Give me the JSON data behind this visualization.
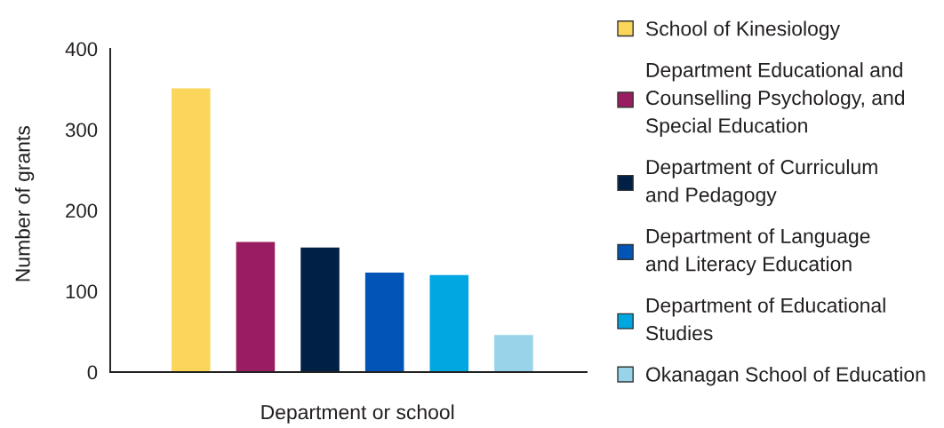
{
  "chart_data": {
    "type": "bar",
    "stacked": true,
    "xlabel": "Department or school",
    "ylabel": "Number of grants",
    "categories": [
      null,
      null,
      null,
      null,
      null,
      null
    ],
    "series": [
      {
        "name": "School of Kinesiology",
        "color": "#fcd65a",
        "values": [
          351,
          null,
          null,
          null,
          null,
          null
        ]
      },
      {
        "name": "Department Educational and\nCounselling Psychology, and\nSpecial Education",
        "color": "#9b1d61",
        "values": [
          null,
          161,
          null,
          null,
          null,
          null
        ]
      },
      {
        "name": "Department of Curriculum\nand Pedagogy",
        "color": "#002145",
        "values": [
          null,
          null,
          154,
          null,
          null,
          null
        ]
      },
      {
        "name": "Department of Language\nand Literacy Education",
        "color": "#0055b7",
        "values": [
          null,
          null,
          null,
          123,
          null,
          null
        ]
      },
      {
        "name": "Department of Educational\nStudies",
        "color": "#00a7e1",
        "values": [
          null,
          null,
          null,
          null,
          120,
          null
        ]
      },
      {
        "name": "Okanagan School of Education",
        "color": "#97d4e9",
        "values": [
          null,
          null,
          null,
          null,
          null,
          46
        ]
      }
    ],
    "ylim": [
      0,
      400
    ],
    "yticks": [
      0,
      100,
      200,
      300,
      400
    ],
    "legend": "right",
    "tick_labels": "y"
  }
}
